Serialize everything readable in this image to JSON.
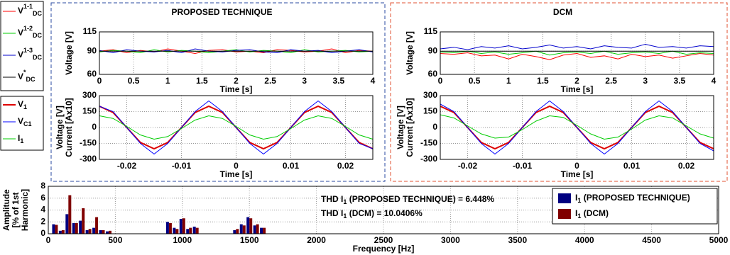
{
  "chart_data": [
    {
      "type": "line",
      "title": "PROPOSED TECHNIQUE",
      "ylabel": [
        "Voltage [V]"
      ],
      "xlabel": "Time [s]",
      "x": [
        0,
        0.2,
        0.4,
        0.6,
        0.8,
        1,
        1.2,
        1.4,
        1.6,
        1.8,
        2,
        2.2,
        2.4,
        2.6,
        2.8,
        3,
        3.2,
        3.4,
        3.6,
        3.8,
        4
      ],
      "xlim": [
        0,
        4
      ],
      "xticks": [
        0,
        0.5,
        1,
        1.5,
        2,
        2.5,
        3,
        3.5,
        4
      ],
      "ylim": [
        60,
        115
      ],
      "yticks": [
        60,
        90,
        115
      ],
      "grid": true,
      "series": [
        {
          "name": "V",
          "sub": "DC",
          "sup": "1-1",
          "color": "#ff0000",
          "values": [
            90,
            92,
            88,
            91,
            89,
            93,
            90,
            87,
            91,
            92,
            89,
            90,
            88,
            92,
            91,
            89,
            90,
            93,
            88,
            91,
            90
          ]
        },
        {
          "name": "V",
          "sub": "DC",
          "sup": "1-2",
          "color": "#00cc00",
          "values": [
            89,
            91,
            90,
            88,
            92,
            89,
            91,
            90,
            88,
            90,
            92,
            89,
            91,
            90,
            88,
            92,
            89,
            90,
            91,
            89,
            90
          ]
        },
        {
          "name": "V",
          "sub": "DC",
          "sup": "1-3",
          "color": "#0000cc",
          "values": [
            91,
            88,
            92,
            90,
            89,
            91,
            88,
            93,
            90,
            89,
            91,
            92,
            89,
            88,
            92,
            90,
            91,
            88,
            90,
            92,
            89
          ]
        },
        {
          "name": "V",
          "sub": "DC",
          "sup": "*",
          "color": "#000000",
          "values": [
            90,
            90,
            90,
            90,
            90,
            90,
            90,
            90,
            90,
            90,
            90,
            90,
            90,
            90,
            90,
            90,
            90,
            90,
            90,
            90,
            90
          ]
        }
      ]
    },
    {
      "type": "line",
      "title": "DCM",
      "ylabel": [
        "Voltage [V]"
      ],
      "xlabel": "Time [s]",
      "x": [
        0,
        0.2,
        0.4,
        0.6,
        0.8,
        1,
        1.2,
        1.4,
        1.6,
        1.8,
        2,
        2.2,
        2.4,
        2.6,
        2.8,
        3,
        3.2,
        3.4,
        3.6,
        3.8,
        4
      ],
      "xlim": [
        0,
        4
      ],
      "xticks": [
        0,
        0.5,
        1,
        1.5,
        2,
        2.5,
        3,
        3.5,
        4
      ],
      "ylim": [
        60,
        115
      ],
      "yticks": [
        60,
        90,
        115
      ],
      "grid": true,
      "series": [
        {
          "color": "#ff0000",
          "values": [
            87,
            86,
            88,
            84,
            85,
            80,
            86,
            83,
            79,
            85,
            87,
            82,
            84,
            80,
            86,
            83,
            85,
            81,
            84,
            87,
            85
          ]
        },
        {
          "color": "#00cc00",
          "values": [
            89,
            88,
            90,
            87,
            89,
            86,
            88,
            90,
            85,
            88,
            89,
            87,
            90,
            86,
            88,
            89,
            87,
            90,
            86,
            88,
            87
          ]
        },
        {
          "color": "#0000cc",
          "values": [
            93,
            95,
            92,
            96,
            94,
            97,
            93,
            95,
            98,
            94,
            96,
            93,
            97,
            95,
            94,
            99,
            95,
            96,
            94,
            97,
            96
          ]
        },
        {
          "color": "#000000",
          "values": [
            90,
            90,
            90,
            90,
            90,
            90,
            90,
            90,
            90,
            90,
            90,
            90,
            90,
            90,
            90,
            90,
            90,
            90,
            90,
            90,
            90
          ]
        }
      ]
    },
    {
      "type": "line",
      "ylabel": [
        "Voltage [V]",
        "Current [Ax10]"
      ],
      "xlabel": "Time [s]",
      "x": [
        -0.025,
        -0.0225,
        -0.02,
        -0.0175,
        -0.015,
        -0.0125,
        -0.01,
        -0.0075,
        -0.005,
        -0.0025,
        0,
        0.0025,
        0.005,
        0.0075,
        0.01,
        0.0125,
        0.015,
        0.0175,
        0.02,
        0.0225,
        0.025
      ],
      "xlim": [
        -0.025,
        0.025
      ],
      "xticks": [
        -0.02,
        -0.01,
        0,
        0.01,
        0.02
      ],
      "ylim": [
        -300,
        300
      ],
      "yticks": [
        -300,
        -150,
        0,
        150,
        300
      ],
      "grid": true,
      "series": [
        {
          "name": "V",
          "sub": "1",
          "color": "#dd0000",
          "values": [
            200,
            141,
            0,
            -141,
            -200,
            -141,
            0,
            141,
            200,
            141,
            0,
            -141,
            -200,
            -141,
            0,
            141,
            200,
            141,
            0,
            -141,
            -200
          ]
        },
        {
          "name": "V",
          "sub": "C1",
          "color": "#0000ff",
          "values": [
            200,
            150,
            0,
            -150,
            -250,
            -150,
            0,
            150,
            250,
            150,
            0,
            -150,
            -250,
            -150,
            0,
            150,
            250,
            150,
            0,
            -150,
            -200
          ]
        },
        {
          "name": "I",
          "sub": "1",
          "color": "#00cc00",
          "values": [
            110,
            85,
            10,
            -70,
            -110,
            -85,
            -10,
            70,
            110,
            85,
            10,
            -70,
            -110,
            -85,
            -10,
            70,
            110,
            85,
            10,
            -70,
            -110
          ]
        }
      ]
    },
    {
      "type": "line",
      "ylabel": [
        "Voltage [V]",
        "Current [Ax10]"
      ],
      "xlabel": "Time [s]",
      "x": [
        -0.025,
        -0.0225,
        -0.02,
        -0.0175,
        -0.015,
        -0.0125,
        -0.01,
        -0.0075,
        -0.005,
        -0.0025,
        0,
        0.0025,
        0.005,
        0.0075,
        0.01,
        0.0125,
        0.015,
        0.0175,
        0.02,
        0.0225,
        0.025
      ],
      "xlim": [
        -0.025,
        0.025
      ],
      "xticks": [
        -0.02,
        -0.01,
        0,
        0.01,
        0.02
      ],
      "ylim": [
        -300,
        300
      ],
      "yticks": [
        -300,
        -150,
        0,
        150,
        300
      ],
      "grid": true,
      "series": [
        {
          "color": "#dd0000",
          "values": [
            200,
            141,
            0,
            -141,
            -200,
            -141,
            0,
            141,
            200,
            141,
            0,
            -141,
            -200,
            -141,
            0,
            141,
            200,
            141,
            0,
            -141,
            -200
          ]
        },
        {
          "color": "#0000ff",
          "values": [
            220,
            150,
            0,
            -150,
            -250,
            -150,
            0,
            150,
            250,
            150,
            0,
            -150,
            -250,
            -150,
            0,
            150,
            250,
            150,
            0,
            -150,
            -220
          ]
        },
        {
          "color": "#00cc00",
          "values": [
            120,
            90,
            15,
            -60,
            -100,
            -90,
            -20,
            60,
            110,
            95,
            20,
            -60,
            -110,
            -90,
            -15,
            70,
            110,
            90,
            15,
            -60,
            -100
          ]
        }
      ]
    },
    {
      "type": "bar",
      "ylabel": [
        "Amplitude",
        "[% of 1st",
        "Harmonic]"
      ],
      "xlabel": "Frequency [Hz]",
      "x": [
        50,
        100,
        150,
        200,
        250,
        300,
        350,
        400,
        450,
        900,
        950,
        1000,
        1050,
        1100,
        1400,
        1450,
        1500,
        1550,
        1600
      ],
      "xlim": [
        0,
        5000
      ],
      "xticks": [
        0,
        500,
        1000,
        1500,
        2000,
        2500,
        3000,
        3500,
        4000,
        4500,
        5000
      ],
      "ylim": [
        0,
        8
      ],
      "yticks": [
        0,
        2,
        4,
        6,
        8
      ],
      "grid": true,
      "annotations": [
        {
          "pre": "THD I",
          "sub": "1",
          "post": " (PROPOSED TECHNIQUE) = 6.448%"
        },
        {
          "pre": "THD I",
          "sub": "1",
          "post": " (DCM) = 10.0406%"
        }
      ],
      "series": [
        {
          "name": "I",
          "sub": "1",
          "post": " (PROPOSED TECHNIQUE)",
          "color": "#000080",
          "values": [
            1.6,
            0.5,
            3.3,
            1.8,
            2.2,
            0.6,
            1.0,
            0.6,
            0.4,
            2.0,
            1.0,
            2.5,
            0.8,
            1.2,
            0.6,
            1.6,
            2.8,
            1.4,
            1.0
          ]
        },
        {
          "name": "I",
          "sub": "1",
          "post": " (DCM)",
          "color": "#800000",
          "values": [
            1.5,
            0.6,
            6.5,
            1.8,
            4.3,
            0.8,
            2.8,
            0.6,
            0.5,
            1.8,
            0.8,
            2.6,
            1.0,
            1.0,
            0.8,
            1.4,
            2.6,
            1.6,
            1.0
          ]
        }
      ]
    }
  ]
}
